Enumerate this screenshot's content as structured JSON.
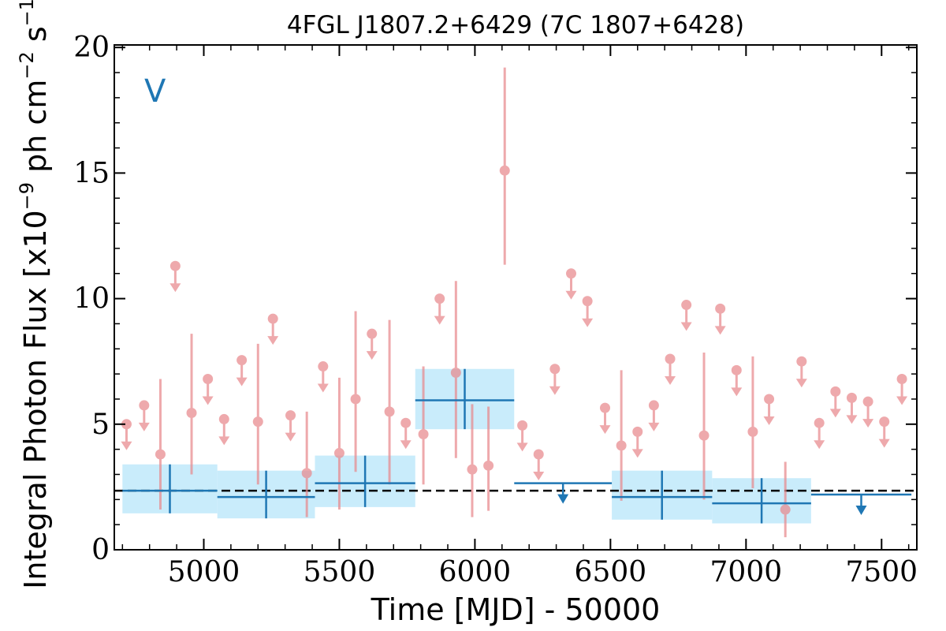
{
  "chart_data": {
    "type": "scatter",
    "title": "4FGL J1807.2+6429 (7C 1807+6428)",
    "xlabel": "Time [MJD] - 50000",
    "ylabel_main": "Integral Photon Flux [x10",
    "ylabel_exp1": "−9",
    "ylabel_mid": " ph cm",
    "ylabel_exp2": "−2",
    "ylabel_end": " s",
    "ylabel_exp3": "−1",
    "ylabel_close": "]",
    "panel_label": "V",
    "xlim": [
      4670,
      7630
    ],
    "ylim": [
      0,
      20.1
    ],
    "xticks": [
      5000,
      5500,
      6000,
      6500,
      7000,
      7500
    ],
    "yticks": [
      0,
      5,
      10,
      15,
      20
    ],
    "reference_level": 2.35,
    "colors": {
      "fine": "#e8898d",
      "coarse": "#1f77b4",
      "band": "#c9ecfb",
      "reference": "#000000"
    },
    "fine_points": [
      {
        "x": 4715,
        "y": 5.0,
        "ul": true
      },
      {
        "x": 4780,
        "y": 5.75,
        "ul": true
      },
      {
        "x": 4840,
        "y": 3.8,
        "lo": 1.6,
        "hi": 6.8
      },
      {
        "x": 4895,
        "y": 11.3,
        "ul": true
      },
      {
        "x": 4955,
        "y": 5.45,
        "lo": 3.0,
        "hi": 8.6
      },
      {
        "x": 5015,
        "y": 6.8,
        "ul": true
      },
      {
        "x": 5075,
        "y": 5.2,
        "ul": true
      },
      {
        "x": 5140,
        "y": 7.55,
        "ul": true
      },
      {
        "x": 5200,
        "y": 5.1,
        "lo": 2.6,
        "hi": 8.2
      },
      {
        "x": 5255,
        "y": 9.2,
        "ul": true
      },
      {
        "x": 5320,
        "y": 5.35,
        "ul": true
      },
      {
        "x": 5380,
        "y": 3.05,
        "lo": 1.3,
        "hi": 5.5
      },
      {
        "x": 5440,
        "y": 7.3,
        "ul": true
      },
      {
        "x": 5500,
        "y": 3.85,
        "lo": 1.6,
        "hi": 6.85
      },
      {
        "x": 5560,
        "y": 6.0,
        "lo": 3.1,
        "hi": 9.5
      },
      {
        "x": 5620,
        "y": 8.6,
        "ul": true
      },
      {
        "x": 5685,
        "y": 5.5,
        "lo": 2.6,
        "hi": 9.15
      },
      {
        "x": 5745,
        "y": 5.05,
        "ul": true
      },
      {
        "x": 5810,
        "y": 4.6,
        "lo": 2.6,
        "hi": 7.3
      },
      {
        "x": 5870,
        "y": 10.0,
        "ul": true
      },
      {
        "x": 5930,
        "y": 7.05,
        "lo": 3.65,
        "hi": 10.7
      },
      {
        "x": 5990,
        "y": 3.2,
        "lo": 1.3,
        "hi": 5.8
      },
      {
        "x": 6050,
        "y": 3.35,
        "lo": 1.55,
        "hi": 5.7
      },
      {
        "x": 6110,
        "y": 15.1,
        "lo": 11.35,
        "hi": 19.2
      },
      {
        "x": 6175,
        "y": 4.95,
        "ul": true
      },
      {
        "x": 6235,
        "y": 3.8,
        "ul": true
      },
      {
        "x": 6295,
        "y": 7.2,
        "ul": true
      },
      {
        "x": 6355,
        "y": 11.0,
        "ul": true
      },
      {
        "x": 6415,
        "y": 9.9,
        "ul": true
      },
      {
        "x": 6480,
        "y": 5.65,
        "ul": true
      },
      {
        "x": 6540,
        "y": 4.15,
        "lo": 1.95,
        "hi": 7.15
      },
      {
        "x": 6600,
        "y": 4.7,
        "ul": true
      },
      {
        "x": 6660,
        "y": 5.75,
        "ul": true
      },
      {
        "x": 6720,
        "y": 7.6,
        "ul": true
      },
      {
        "x": 6780,
        "y": 9.75,
        "ul": true
      },
      {
        "x": 6845,
        "y": 4.55,
        "lo": 2.0,
        "hi": 7.85
      },
      {
        "x": 6905,
        "y": 9.6,
        "ul": true
      },
      {
        "x": 6965,
        "y": 7.15,
        "ul": true
      },
      {
        "x": 7025,
        "y": 4.7,
        "lo": 2.45,
        "hi": 7.7
      },
      {
        "x": 7085,
        "y": 6.0,
        "ul": true
      },
      {
        "x": 7145,
        "y": 1.6,
        "lo": 0.5,
        "hi": 3.5
      },
      {
        "x": 7205,
        "y": 7.5,
        "ul": true
      },
      {
        "x": 7270,
        "y": 5.05,
        "ul": true
      },
      {
        "x": 7330,
        "y": 6.3,
        "ul": true
      },
      {
        "x": 7390,
        "y": 6.05,
        "ul": true
      },
      {
        "x": 7450,
        "y": 5.9,
        "ul": true
      },
      {
        "x": 7510,
        "y": 5.1,
        "ul": true
      },
      {
        "x": 7575,
        "y": 6.8,
        "ul": true
      }
    ],
    "coarse_bins": [
      {
        "x0": 4700,
        "x1": 5050,
        "y": 2.35,
        "lo": 1.45,
        "hi": 3.4
      },
      {
        "x0": 5050,
        "x1": 5410,
        "y": 2.1,
        "lo": 1.25,
        "hi": 3.15
      },
      {
        "x0": 5410,
        "x1": 5780,
        "y": 2.65,
        "lo": 1.7,
        "hi": 3.75
      },
      {
        "x0": 5780,
        "x1": 6145,
        "y": 5.95,
        "lo": 4.8,
        "hi": 7.2
      },
      {
        "x0": 6145,
        "x1": 6505,
        "y": 2.65,
        "ul": true
      },
      {
        "x0": 6505,
        "x1": 6875,
        "y": 2.1,
        "lo": 1.2,
        "hi": 3.15
      },
      {
        "x0": 6875,
        "x1": 7240,
        "y": 1.85,
        "lo": 1.05,
        "hi": 2.85
      },
      {
        "x0": 7240,
        "x1": 7610,
        "y": 2.2,
        "ul": true
      }
    ]
  }
}
